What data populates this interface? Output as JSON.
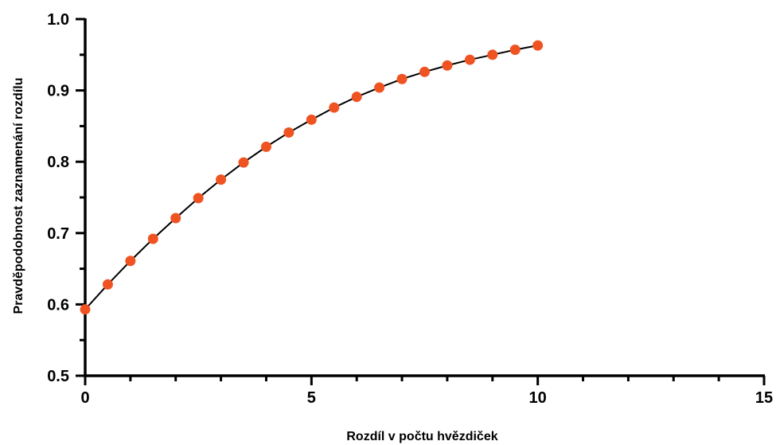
{
  "chart_data": {
    "type": "scatter",
    "title": "",
    "xlabel": "Rozdíl v počtu hvězdiček",
    "ylabel": "Pravděpodobnost zaznamenání rozdílu",
    "xlim": [
      0,
      15
    ],
    "ylim": [
      0.5,
      1.0
    ],
    "x_major_ticks": [
      0,
      5,
      10,
      15
    ],
    "x_major_tick_labels": [
      "0",
      "5",
      "10",
      "15"
    ],
    "x_minor_ticks": [
      1,
      2,
      3,
      4,
      6,
      7,
      8,
      9,
      11,
      12,
      13,
      14
    ],
    "y_major_ticks": [
      0.5,
      0.6,
      0.7,
      0.8,
      0.9,
      1.0
    ],
    "y_major_tick_labels": [
      "0.5",
      "0.6",
      "0.7",
      "0.8",
      "0.9",
      "1.0"
    ],
    "y_minor_ticks": [
      0.55,
      0.65,
      0.75,
      0.85,
      0.95
    ],
    "grid": false,
    "legend": "none",
    "point_color": "#F05322",
    "line_color": "#000000",
    "series": [
      {
        "type": "scatter",
        "x": [
          0,
          0.5,
          1,
          1.5,
          2,
          2.5,
          3,
          3.5,
          4,
          4.5,
          5,
          5.5,
          6,
          6.5,
          7,
          7.5,
          8,
          8.5,
          9,
          9.5,
          10
        ],
        "y": [
          0.593,
          0.628,
          0.661,
          0.692,
          0.721,
          0.749,
          0.775,
          0.799,
          0.821,
          0.841,
          0.859,
          0.876,
          0.891,
          0.904,
          0.916,
          0.926,
          0.935,
          0.943,
          0.95,
          0.957,
          0.963
        ]
      },
      {
        "type": "line",
        "x": [
          0,
          0.5,
          1,
          1.5,
          2,
          2.5,
          3,
          3.5,
          4,
          4.5,
          5,
          5.5,
          6,
          6.5,
          7,
          7.5,
          8,
          8.5,
          9,
          9.5,
          10
        ],
        "y": [
          0.593,
          0.628,
          0.661,
          0.692,
          0.721,
          0.749,
          0.775,
          0.799,
          0.821,
          0.841,
          0.859,
          0.876,
          0.891,
          0.904,
          0.916,
          0.926,
          0.935,
          0.943,
          0.95,
          0.957,
          0.963
        ]
      }
    ]
  }
}
